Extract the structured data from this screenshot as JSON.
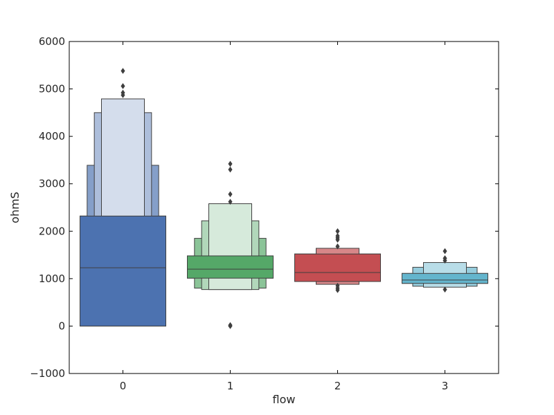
{
  "chart_data": {
    "type": "boxen",
    "xlabel": "flow",
    "ylabel": "ohmS",
    "ylim": [
      -1000,
      6000
    ],
    "yticks": [
      -1000,
      0,
      1000,
      2000,
      3000,
      4000,
      5000,
      6000
    ],
    "categories": [
      "0",
      "1",
      "2",
      "3"
    ],
    "grid": false,
    "series": [
      {
        "category": "0",
        "color": "#4c72b0",
        "median": 1230,
        "levels": [
          {
            "low": 0,
            "high": 2320
          },
          {
            "low": 0,
            "high": 3390
          },
          {
            "low": 0,
            "high": 4500
          },
          {
            "low": 0,
            "high": 4790
          }
        ],
        "outliers": [
          4870,
          4920,
          5060,
          5380
        ]
      },
      {
        "category": "1",
        "color": "#55a868",
        "median": 1200,
        "levels": [
          {
            "low": 1010,
            "high": 1480
          },
          {
            "low": 800,
            "high": 1850
          },
          {
            "low": 770,
            "high": 2220
          },
          {
            "low": 770,
            "high": 2580
          }
        ],
        "outliers": [
          0,
          20,
          2620,
          2780,
          3300,
          3420
        ]
      },
      {
        "category": "2",
        "color": "#c44e52",
        "median": 1130,
        "levels": [
          {
            "low": 940,
            "high": 1520
          },
          {
            "low": 880,
            "high": 1640
          }
        ],
        "outliers": [
          760,
          800,
          850,
          1680,
          1820,
          1860,
          1900,
          2000
        ]
      },
      {
        "category": "3",
        "color": "#64b5cd",
        "median": 970,
        "levels": [
          {
            "low": 900,
            "high": 1110
          },
          {
            "low": 840,
            "high": 1240
          },
          {
            "low": 820,
            "high": 1340
          }
        ],
        "outliers": [
          770,
          1380,
          1430,
          1580
        ]
      }
    ]
  }
}
